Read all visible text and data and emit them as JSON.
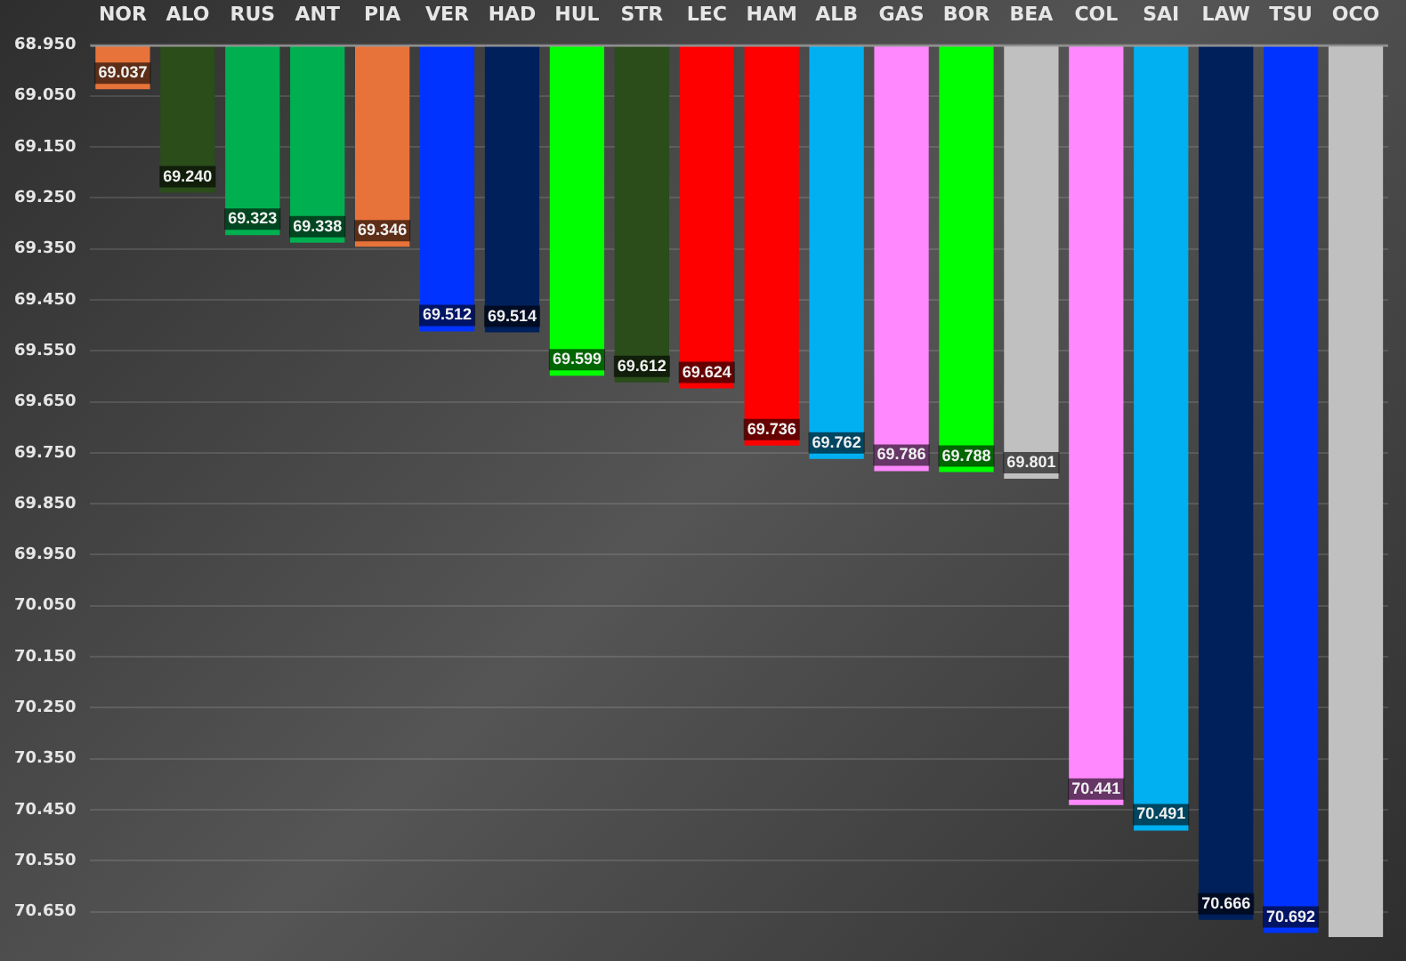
{
  "chart_data": {
    "type": "bar",
    "categories": [
      "NOR",
      "ALO",
      "RUS",
      "ANT",
      "PIA",
      "VER",
      "HAD",
      "HUL",
      "STR",
      "LEC",
      "HAM",
      "ALB",
      "GAS",
      "BOR",
      "BEA",
      "COL",
      "SAI",
      "LAW",
      "TSU",
      "OCO"
    ],
    "values": [
      69.037,
      69.24,
      69.323,
      69.338,
      69.346,
      69.512,
      69.514,
      69.599,
      69.612,
      69.624,
      69.736,
      69.762,
      69.786,
      69.788,
      69.801,
      70.441,
      70.491,
      70.666,
      70.692,
      70.7
    ],
    "value_labels": [
      "69.037",
      "69.240",
      "69.323",
      "69.338",
      "69.346",
      "69.512",
      "69.514",
      "69.599",
      "69.612",
      "69.624",
      "69.736",
      "69.762",
      "69.786",
      "69.788",
      "69.801",
      "70.441",
      "70.491",
      "70.666",
      "70.692",
      null
    ],
    "colors": [
      "#e8733a",
      "#2a4d1a",
      "#00b050",
      "#00b050",
      "#e8733a",
      "#0033ff",
      "#00205b",
      "#00ff00",
      "#2a4d1a",
      "#ff0000",
      "#ff0000",
      "#00b0f0",
      "#ff88ff",
      "#00ff00",
      "#c0c0c0",
      "#ff88ff",
      "#00b0f0",
      "#00205b",
      "#0033ff",
      "#c0c0c0"
    ],
    "ylim": [
      70.7,
      68.95
    ],
    "yticks": [
      {
        "value": 68.95,
        "label": "68.950"
      },
      {
        "value": 69.05,
        "label": "69.050"
      },
      {
        "value": 69.15,
        "label": "69.150"
      },
      {
        "value": 69.25,
        "label": "69.250"
      },
      {
        "value": 69.35,
        "label": "69.350"
      },
      {
        "value": 69.45,
        "label": "69.450"
      },
      {
        "value": 69.55,
        "label": "69.550"
      },
      {
        "value": 69.65,
        "label": "69.650"
      },
      {
        "value": 69.75,
        "label": "69.750"
      },
      {
        "value": 69.85,
        "label": "69.850"
      },
      {
        "value": 69.95,
        "label": "69.950"
      },
      {
        "value": 70.05,
        "label": "70.050"
      },
      {
        "value": 70.15,
        "label": "70.150"
      },
      {
        "value": 70.25,
        "label": "70.250"
      },
      {
        "value": 70.35,
        "label": "70.350"
      },
      {
        "value": 70.45,
        "label": "70.450"
      },
      {
        "value": 70.55,
        "label": "70.550"
      },
      {
        "value": 70.65,
        "label": "70.650"
      }
    ],
    "grid": "y",
    "legend": false
  }
}
